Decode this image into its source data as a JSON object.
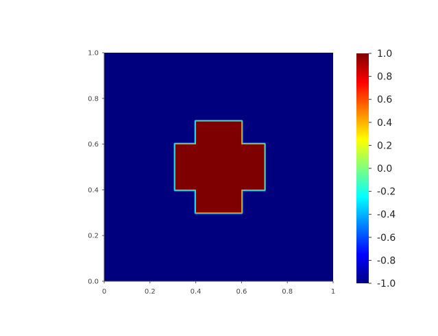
{
  "chart_data": {
    "type": "heatmap",
    "title": "",
    "xlabel": "",
    "ylabel": "",
    "xlim": [
      0,
      1
    ],
    "ylim": [
      0,
      1
    ],
    "x_ticks": [
      "0",
      "0.2",
      "0.4",
      "0.6",
      "0.8",
      "1"
    ],
    "x_tick_values": [
      0,
      0.2,
      0.4,
      0.6,
      0.8,
      1
    ],
    "y_ticks": [
      "0.0",
      "0.2",
      "0.4",
      "0.6",
      "0.8",
      "1.0"
    ],
    "y_tick_values": [
      0,
      0.2,
      0.4,
      0.6,
      0.8,
      1.0
    ],
    "background_value": -1.0,
    "shape": {
      "kind": "cross",
      "value": 1.0,
      "horizontal_bar": {
        "x": [
          0.31,
          0.7
        ],
        "y": [
          0.4,
          0.6
        ]
      },
      "vertical_bar": {
        "x": [
          0.4,
          0.6
        ],
        "y": [
          0.3,
          0.7
        ]
      }
    },
    "colorbar": {
      "range": [
        -1.0,
        1.0
      ],
      "colormap": "jet",
      "tick_labels": [
        "1.0",
        "0.8",
        "0.6",
        "0.4",
        "0.2",
        "0.0",
        "-0.2",
        "-0.4",
        "-0.6",
        "-0.8",
        "-1.0"
      ],
      "tick_values": [
        1.0,
        0.8,
        0.6,
        0.4,
        0.2,
        0.0,
        -0.2,
        -0.4,
        -0.6,
        -0.8,
        -1.0
      ]
    },
    "colors": {
      "low": "#00007f",
      "high": "#7f0000",
      "edge_inner": "#00bfff",
      "edge_outer": "#2fffcf"
    }
  }
}
